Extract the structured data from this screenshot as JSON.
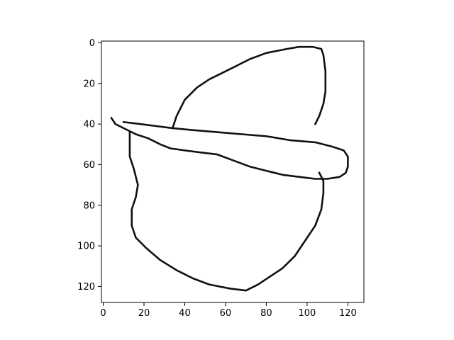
{
  "figure": {
    "background": "#ffffff",
    "stroke_color": "#111111",
    "axes": {
      "x_range": [
        0,
        127
      ],
      "y_range": [
        0,
        127
      ],
      "y_inverted": true,
      "x_ticks": [
        "0",
        "20",
        "40",
        "60",
        "80",
        "100",
        "120"
      ],
      "y_ticks": [
        "0",
        "20",
        "40",
        "60",
        "80",
        "100",
        "120"
      ]
    },
    "strokes": [
      {
        "name": "hat-crown",
        "points": [
          [
            34,
            42
          ],
          [
            36,
            36
          ],
          [
            40,
            28
          ],
          [
            46,
            22
          ],
          [
            52,
            18
          ],
          [
            62,
            13
          ],
          [
            72,
            8
          ],
          [
            80,
            5
          ],
          [
            90,
            3
          ],
          [
            96,
            2
          ],
          [
            103,
            2
          ],
          [
            107,
            3
          ],
          [
            108,
            6
          ],
          [
            109,
            14
          ],
          [
            109,
            24
          ],
          [
            108,
            30
          ],
          [
            106,
            36
          ],
          [
            104,
            40
          ]
        ]
      },
      {
        "name": "hat-brim",
        "points": [
          [
            4,
            37
          ],
          [
            6,
            40
          ],
          [
            10,
            42
          ],
          [
            16,
            45
          ],
          [
            22,
            47
          ],
          [
            28,
            50
          ],
          [
            33,
            52
          ],
          [
            40,
            53
          ],
          [
            48,
            54
          ],
          [
            56,
            55
          ],
          [
            64,
            58
          ],
          [
            72,
            61
          ],
          [
            80,
            63
          ],
          [
            88,
            65
          ],
          [
            96,
            66
          ],
          [
            104,
            67
          ],
          [
            110,
            67
          ],
          [
            116,
            66
          ],
          [
            119,
            64
          ],
          [
            120,
            61
          ],
          [
            120,
            56
          ],
          [
            118,
            53
          ],
          [
            112,
            51
          ],
          [
            104,
            49
          ],
          [
            92,
            48
          ],
          [
            80,
            46
          ],
          [
            68,
            45
          ],
          [
            56,
            44
          ],
          [
            44,
            43
          ],
          [
            34,
            42
          ],
          [
            26,
            41
          ],
          [
            18,
            40
          ],
          [
            10,
            39
          ]
        ]
      },
      {
        "name": "hat-bowl",
        "points": [
          [
            13,
            44
          ],
          [
            13,
            56
          ],
          [
            15,
            62
          ],
          [
            17,
            70
          ],
          [
            16,
            76
          ],
          [
            14,
            82
          ],
          [
            14,
            90
          ],
          [
            16,
            96
          ],
          [
            21,
            101
          ],
          [
            28,
            107
          ],
          [
            36,
            112
          ],
          [
            44,
            116
          ],
          [
            52,
            119
          ],
          [
            62,
            121
          ],
          [
            70,
            122
          ],
          [
            76,
            119
          ],
          [
            82,
            115
          ],
          [
            88,
            111
          ],
          [
            94,
            105
          ],
          [
            100,
            96
          ],
          [
            104,
            90
          ],
          [
            107,
            82
          ],
          [
            108,
            74
          ],
          [
            108,
            68
          ],
          [
            106,
            64
          ]
        ]
      }
    ]
  }
}
